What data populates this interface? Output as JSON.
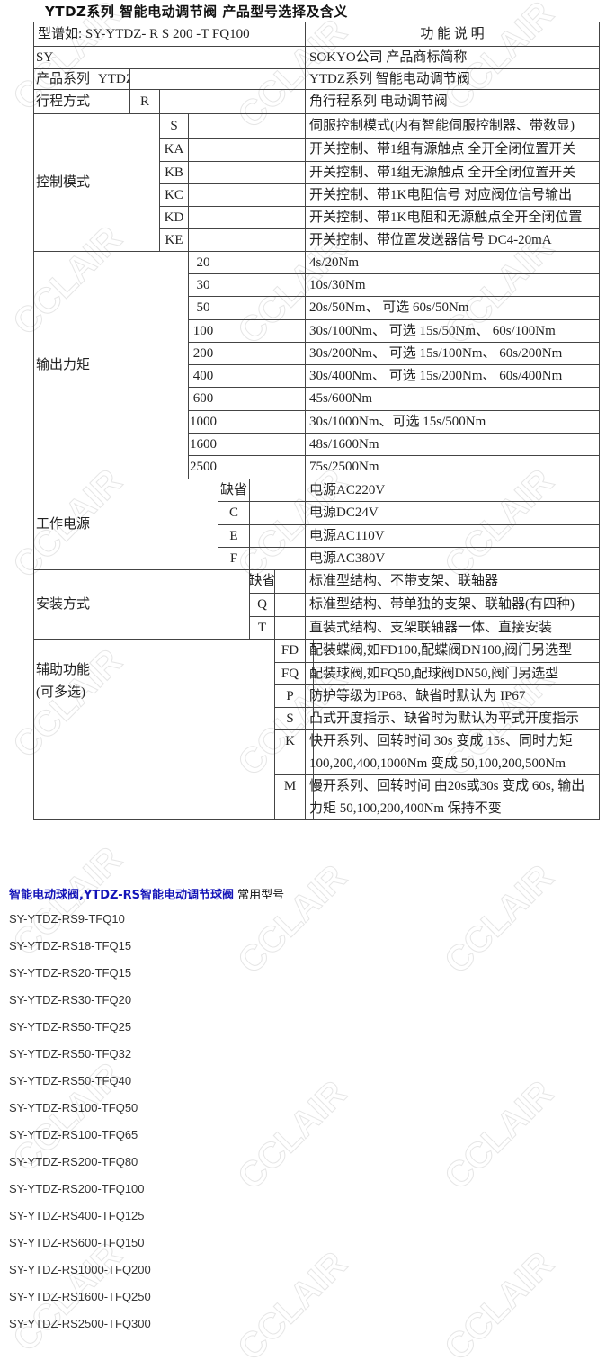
{
  "title": "YTDZ系列  智能电动调节阀  产品型号选择及含义",
  "watermark": "CCLAIR",
  "table": {
    "header": {
      "model_example": "型谱如:  SY-YTDZ- R S 200 -T FQ100",
      "function": "功 能 说 明"
    },
    "sy": {
      "label": "SY-",
      "desc": "SOKYO公司 产品商标简称"
    },
    "series": {
      "label": "产品系列",
      "code": "YTDZ",
      "desc": "YTDZ系列  智能电动调节阀"
    },
    "travel": {
      "label": "行程方式",
      "code": "R",
      "desc": "角行程系列  电动调节阀"
    },
    "control": {
      "label": "控制模式",
      "rows": [
        {
          "code": "S",
          "desc": "伺服控制模式(内有智能伺服控制器、带数显)"
        },
        {
          "code": "KA",
          "desc": "开关控制、带1组有源触点  全开全闭位置开关"
        },
        {
          "code": "KB",
          "desc": "开关控制、带1组无源触点  全开全闭位置开关"
        },
        {
          "code": "KC",
          "desc": "开关控制、带1K电阻信号   对应阀位信号输出"
        },
        {
          "code": "KD",
          "desc": "开关控制、带1K电阻和无源触点全开全闭位置"
        },
        {
          "code": "KE",
          "desc": "开关控制、带位置发送器信号 DC4-20mA"
        }
      ]
    },
    "torque": {
      "label": "输出力矩",
      "rows": [
        {
          "code": "20",
          "desc": "4s/20Nm"
        },
        {
          "code": "30",
          "desc": "10s/30Nm"
        },
        {
          "code": "50",
          "desc": "20s/50Nm、                    可选 60s/50Nm"
        },
        {
          "code": "100",
          "desc": "30s/100Nm、 可选 15s/50Nm、   60s/100Nm"
        },
        {
          "code": "200",
          "desc": "30s/200Nm、 可选 15s/100Nm、 60s/200Nm"
        },
        {
          "code": "400",
          "desc": "30s/400Nm、 可选 15s/200Nm、 60s/400Nm"
        },
        {
          "code": "600",
          "desc": "45s/600Nm"
        },
        {
          "code": "1000",
          "desc": "30s/1000Nm、可选 15s/500Nm"
        },
        {
          "code": "1600",
          "desc": "48s/1600Nm"
        },
        {
          "code": "2500",
          "desc": "75s/2500Nm"
        }
      ]
    },
    "power": {
      "label": "工作电源",
      "rows": [
        {
          "code": "缺省",
          "desc": "电源AC220V"
        },
        {
          "code": "C",
          "desc": "电源DC24V"
        },
        {
          "code": "E",
          "desc": "电源AC110V"
        },
        {
          "code": "F",
          "desc": "电源AC380V"
        }
      ]
    },
    "install": {
      "label": "安装方式",
      "rows": [
        {
          "code": "缺省",
          "desc": "标准型结构、不带支架、联轴器"
        },
        {
          "code": "Q",
          "desc": "标准型结构、带单独的支架、联轴器(有四种)"
        },
        {
          "code": "T",
          "desc": "直装式结构、支架联轴器一体、直接安装"
        }
      ]
    },
    "aux": {
      "label": "辅助功能(可多选)",
      "rows": [
        {
          "code": "FD",
          "desc": "配装蝶阀,如FD100,配蝶阀DN100,阀门另选型"
        },
        {
          "code": "FQ",
          "desc": "配装球阀,如FQ50,配球阀DN50,阀门另选型"
        },
        {
          "code": "P",
          "desc": "防护等级为IP68、缺省时默认为 IP67"
        },
        {
          "code": "S",
          "desc": "凸式开度指示、缺省时为默认为平式开度指示"
        },
        {
          "code": "K",
          "desc": "快开系列、回转时间 30s 变成 15s、同时力矩 100,200,400,1000Nm 变成 50,100,200,500Nm"
        },
        {
          "code": "M",
          "desc": "慢开系列、回转时间 由20s或30s 变成 60s, 输出力矩 50,100,200,400Nm 保持不变"
        }
      ]
    }
  },
  "common_models": {
    "title_highlight": "智能电动球阀,YTDZ-RS智能电动调节球阀",
    "title_rest": " 常用型号",
    "items": [
      "SY-YTDZ-RS9-TFQ10",
      "SY-YTDZ-RS18-TFQ15",
      "SY-YTDZ-RS20-TFQ15",
      "SY-YTDZ-RS30-TFQ20",
      "SY-YTDZ-RS50-TFQ25",
      "SY-YTDZ-RS50-TFQ32",
      "SY-YTDZ-RS50-TFQ40",
      "SY-YTDZ-RS100-TFQ50",
      "SY-YTDZ-RS100-TFQ65",
      "SY-YTDZ-RS200-TFQ80",
      "SY-YTDZ-RS200-TFQ100",
      "SY-YTDZ-RS400-TFQ125",
      "SY-YTDZ-RS600-TFQ150",
      "SY-YTDZ-RS1000-TFQ200",
      "SY-YTDZ-RS1600-TFQ250",
      "SY-YTDZ-RS2500-TFQ300"
    ]
  }
}
